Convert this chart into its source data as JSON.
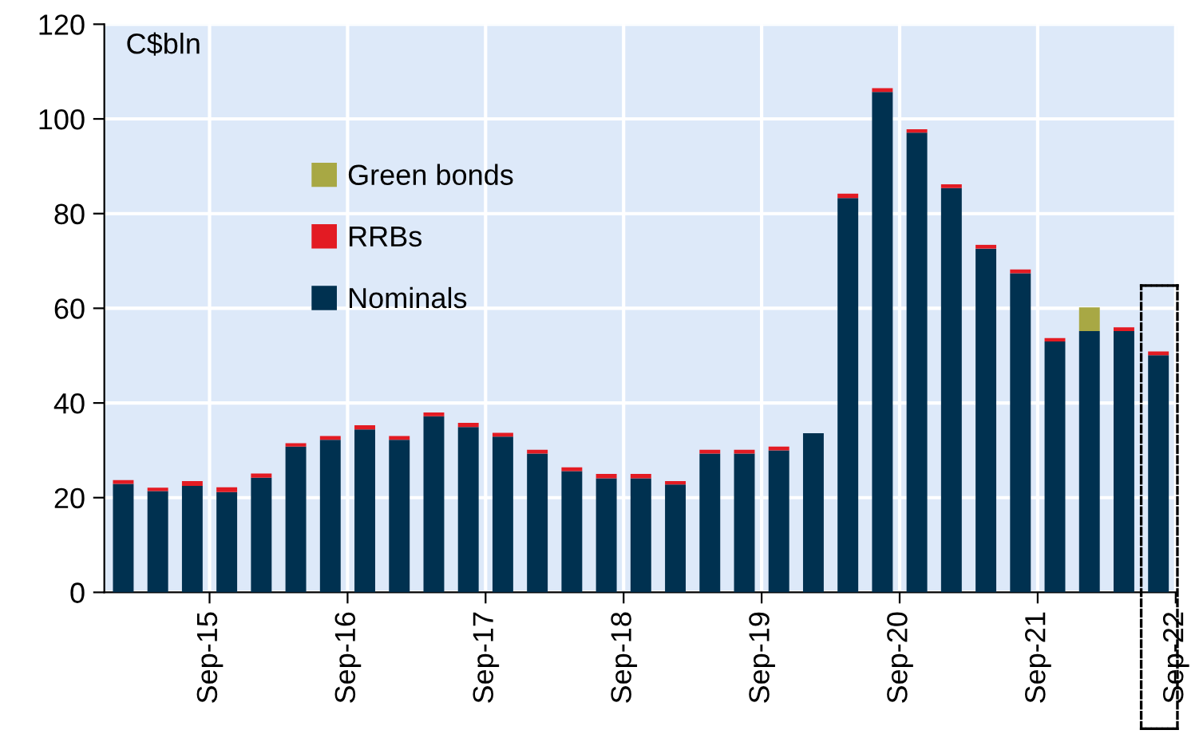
{
  "chart_data": {
    "type": "bar",
    "stacked": true,
    "ylabel": "C$bln",
    "categories": [
      null,
      null,
      "Sep-15",
      null,
      null,
      null,
      "Sep-16",
      null,
      null,
      null,
      "Sep-17",
      null,
      null,
      null,
      "Sep-18",
      null,
      null,
      null,
      "Sep-19",
      null,
      null,
      null,
      "Sep-20",
      null,
      null,
      null,
      "Sep-21",
      null,
      null,
      null,
      "Sep-22"
    ],
    "series": [
      {
        "name": "Nominals",
        "color": "#003150",
        "values": [
          22.9,
          21.4,
          22.5,
          21.2,
          24.2,
          30.8,
          32.2,
          34.4,
          32.2,
          37.2,
          34.9,
          32.9,
          29.3,
          25.6,
          24.1,
          24.1,
          22.8,
          29.3,
          29.3,
          30.0,
          33.6,
          83.3,
          105.7,
          97.1,
          85.4,
          72.6,
          67.4,
          53.0,
          55.2,
          55.2,
          50.1
        ]
      },
      {
        "name": "RRBs",
        "color": "#e31b23",
        "values": [
          0.8,
          0.7,
          1.0,
          1.0,
          0.9,
          0.7,
          0.8,
          0.9,
          0.8,
          0.8,
          0.9,
          0.8,
          0.8,
          0.8,
          0.9,
          0.9,
          0.7,
          0.8,
          0.8,
          0.8,
          null,
          0.9,
          0.8,
          0.7,
          0.8,
          0.8,
          0.8,
          0.7,
          null,
          0.8,
          0.8
        ]
      },
      {
        "name": "Green bonds",
        "color": "#a8a844",
        "values": [
          null,
          null,
          null,
          null,
          null,
          null,
          null,
          null,
          null,
          null,
          null,
          null,
          null,
          null,
          null,
          null,
          null,
          null,
          null,
          null,
          null,
          null,
          null,
          null,
          null,
          null,
          null,
          null,
          5.0,
          null,
          null
        ]
      }
    ],
    "ylim": [
      0,
      120
    ],
    "yticks": [
      0,
      20,
      40,
      60,
      80,
      100,
      120
    ],
    "grid": true,
    "legend": "top left"
  }
}
